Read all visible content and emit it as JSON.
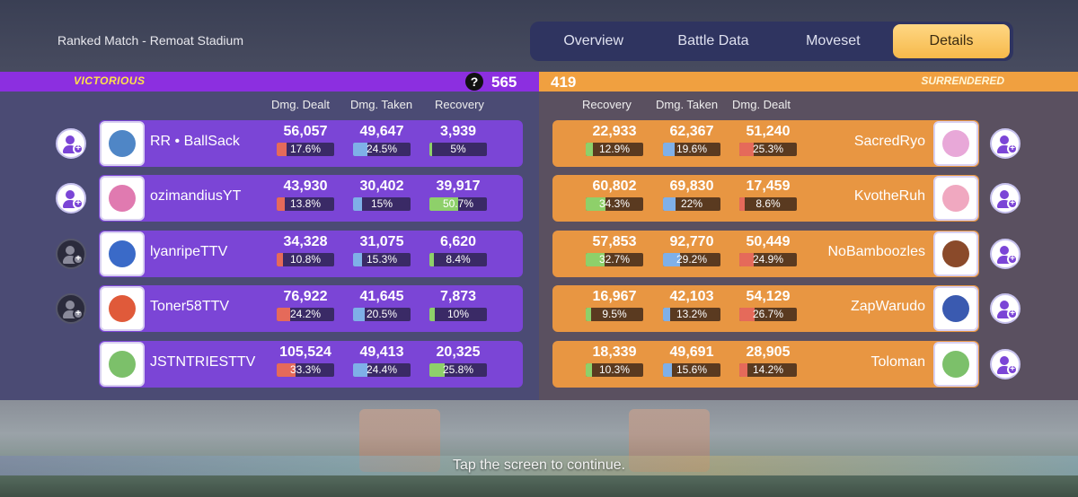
{
  "match_title": "Ranked Match - Remoat Stadium",
  "tabs": [
    {
      "label": "Overview",
      "active": false
    },
    {
      "label": "Battle Data",
      "active": false
    },
    {
      "label": "Moveset",
      "active": false
    },
    {
      "label": "Details",
      "active": true
    }
  ],
  "left_team": {
    "status": "VICTORIOUS",
    "score": "565",
    "help_label": "?",
    "headers": {
      "dealt": "Dmg. Dealt",
      "taken": "Dmg. Taken",
      "recovery": "Recovery"
    },
    "players": [
      {
        "name": "RR • BallSack",
        "dealt": "56,057",
        "dealt_pct": "17.6%",
        "taken": "49,647",
        "taken_pct": "24.5%",
        "recovery": "3,939",
        "recovery_pct": "5%",
        "friend_dim": false,
        "mon_color": "#4f86c6"
      },
      {
        "name": "ozimandiusYT",
        "dealt": "43,930",
        "dealt_pct": "13.8%",
        "taken": "30,402",
        "taken_pct": "15%",
        "recovery": "39,917",
        "recovery_pct": "50.7%",
        "friend_dim": false,
        "mon_color": "#e07ab0"
      },
      {
        "name": "lyanripeTTV",
        "dealt": "34,328",
        "dealt_pct": "10.8%",
        "taken": "31,075",
        "taken_pct": "15.3%",
        "recovery": "6,620",
        "recovery_pct": "8.4%",
        "friend_dim": true,
        "mon_color": "#3a6ac8"
      },
      {
        "name": "Toner58TTV",
        "dealt": "76,922",
        "dealt_pct": "24.2%",
        "taken": "41,645",
        "taken_pct": "20.5%",
        "recovery": "7,873",
        "recovery_pct": "10%",
        "friend_dim": true,
        "mon_color": "#e05a3a"
      },
      {
        "name": "JSTNTRIESTTV",
        "dealt": "105,524",
        "dealt_pct": "33.3%",
        "taken": "49,413",
        "taken_pct": "24.4%",
        "recovery": "20,325",
        "recovery_pct": "25.8%",
        "friend_dim": null,
        "mon_color": "#7cc06a"
      }
    ]
  },
  "right_team": {
    "status": "SURRENDERED",
    "score": "419",
    "headers": {
      "recovery": "Recovery",
      "taken": "Dmg. Taken",
      "dealt": "Dmg. Dealt"
    },
    "players": [
      {
        "name": "SacredRyo",
        "recovery": "22,933",
        "recovery_pct": "12.9%",
        "taken": "62,367",
        "taken_pct": "19.6%",
        "dealt": "51,240",
        "dealt_pct": "25.3%",
        "mon_color": "#e8a8d8"
      },
      {
        "name": "KvotheRuh",
        "recovery": "60,802",
        "recovery_pct": "34.3%",
        "taken": "69,830",
        "taken_pct": "22%",
        "dealt": "17,459",
        "dealt_pct": "8.6%",
        "mon_color": "#f0a8c0"
      },
      {
        "name": "NoBamboozles",
        "recovery": "57,853",
        "recovery_pct": "32.7%",
        "taken": "92,770",
        "taken_pct": "29.2%",
        "dealt": "50,449",
        "dealt_pct": "24.9%",
        "mon_color": "#8a4a2a"
      },
      {
        "name": "ZapWarudo",
        "recovery": "16,967",
        "recovery_pct": "9.5%",
        "taken": "42,103",
        "taken_pct": "13.2%",
        "dealt": "54,129",
        "dealt_pct": "26.7%",
        "mon_color": "#3a5ab0"
      },
      {
        "name": "Toloman",
        "recovery": "18,339",
        "recovery_pct": "10.3%",
        "taken": "49,691",
        "taken_pct": "15.6%",
        "dealt": "28,905",
        "dealt_pct": "14.2%",
        "mon_color": "#7cc06a"
      }
    ]
  },
  "colors": {
    "dealt": "#e56a5a",
    "taken": "#7fb0e8",
    "recovery": "#8ed06a"
  },
  "footer": {
    "continue_text": "Tap the screen to continue."
  }
}
